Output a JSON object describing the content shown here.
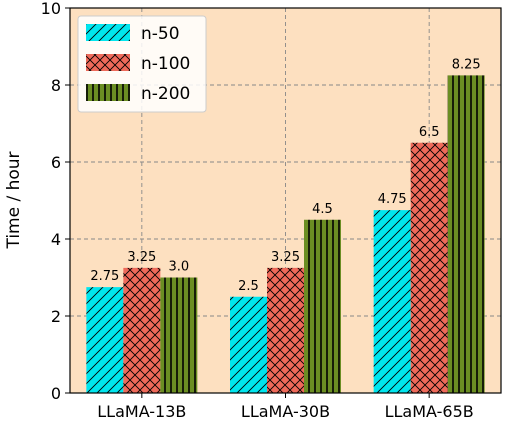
{
  "chart_data": {
    "type": "bar",
    "categories": [
      "LLaMA-13B",
      "LLaMA-30B",
      "LLaMA-65B"
    ],
    "series": [
      {
        "name": "n-50",
        "values": [
          2.75,
          2.5,
          4.75
        ],
        "labels": [
          "2.75",
          "2.5",
          "4.75"
        ],
        "color": "#00e5ee",
        "pattern": "diagonal-hatch"
      },
      {
        "name": "n-100",
        "values": [
          3.25,
          3.25,
          6.5
        ],
        "labels": [
          "3.25",
          "3.25",
          "6.5"
        ],
        "color": "#ee6a5a",
        "pattern": "cross-hatch"
      },
      {
        "name": "n-200",
        "values": [
          3.0,
          4.5,
          8.25
        ],
        "labels": [
          "3.0",
          "4.5",
          "8.25"
        ],
        "color": "#6b8e23",
        "pattern": "vertical-hatch"
      }
    ],
    "xlabel": "",
    "ylabel": "Time / hour",
    "ylim": [
      0,
      10
    ],
    "yticks": [
      "0",
      "2",
      "4",
      "6",
      "8",
      "10"
    ],
    "grid": true,
    "legend": "top-left",
    "background": "#fde0c0"
  }
}
